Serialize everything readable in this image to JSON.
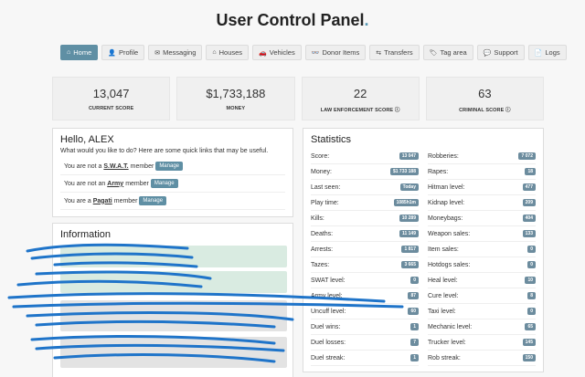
{
  "page": {
    "title": "User Control Panel",
    "title_dot": "."
  },
  "nav": [
    {
      "icon": "home-icon",
      "glyph": "⌂",
      "label": "Home",
      "active": true
    },
    {
      "icon": "user-icon",
      "glyph": "👤",
      "label": "Profile"
    },
    {
      "icon": "envelope-icon",
      "glyph": "✉",
      "label": "Messaging"
    },
    {
      "icon": "house-icon",
      "glyph": "⌂",
      "label": "Houses"
    },
    {
      "icon": "car-icon",
      "glyph": "🚗",
      "label": "Vehicles"
    },
    {
      "icon": "glasses-icon",
      "glyph": "👓",
      "label": "Donor Items"
    },
    {
      "icon": "exchange-icon",
      "glyph": "⇆",
      "label": "Transfers"
    },
    {
      "icon": "tag-icon",
      "glyph": "🏷",
      "label": "Tag area"
    },
    {
      "icon": "chat-icon",
      "glyph": "💬",
      "label": "Support"
    },
    {
      "icon": "file-icon",
      "glyph": "📄",
      "label": "Logs"
    }
  ],
  "stats": [
    {
      "value": "13,047",
      "label": "CURRENT SCORE"
    },
    {
      "value": "$1,733,188",
      "label": "MONEY"
    },
    {
      "value": "22",
      "label": "LAW ENFORCEMENT SCORE ⓘ"
    },
    {
      "value": "63",
      "label": "CRIMINAL SCORE ⓘ"
    }
  ],
  "hello": {
    "title": "Hello, ALEX",
    "subtitle": "What would you like to do? Here are some quick links that may be useful.",
    "links": [
      {
        "pre": "You are not a",
        "org": "S.W.A.T.",
        "post": "member",
        "button": "Manage"
      },
      {
        "pre": "You are not an",
        "org": "Army",
        "post": "member",
        "button": "Manage"
      },
      {
        "pre": "You are a",
        "org": "Pagati",
        "post": "member",
        "button": "Manage"
      }
    ]
  },
  "info": {
    "title": "Information"
  },
  "statistics": {
    "title": "Statistics",
    "left": [
      {
        "label": "Score:",
        "value": "13 047"
      },
      {
        "label": "Money:",
        "value": "$1 733 188"
      },
      {
        "label": "Last seen:",
        "value": "Today"
      },
      {
        "label": "Play time:",
        "value": "1085h1m"
      },
      {
        "label": "Kills:",
        "value": "10 289"
      },
      {
        "label": "Deaths:",
        "value": "11 149"
      },
      {
        "label": "Arrests:",
        "value": "1 817"
      },
      {
        "label": "Tazes:",
        "value": "3 665"
      },
      {
        "label": "SWAT level:",
        "value": "0"
      },
      {
        "label": "Army level:",
        "value": "87"
      },
      {
        "label": "Uncuff level:",
        "value": "60"
      },
      {
        "label": "Duel wins:",
        "value": "1"
      },
      {
        "label": "Duel losses:",
        "value": "7"
      },
      {
        "label": "Duel streak:",
        "value": "1"
      }
    ],
    "right": [
      {
        "label": "Robberies:",
        "value": "7 072"
      },
      {
        "label": "Rapes:",
        "value": "18"
      },
      {
        "label": "Hitman level:",
        "value": "477"
      },
      {
        "label": "Kidnap level:",
        "value": "209"
      },
      {
        "label": "Moneybags:",
        "value": "404"
      },
      {
        "label": "Weapon sales:",
        "value": "133"
      },
      {
        "label": "Item sales:",
        "value": "0"
      },
      {
        "label": "Hotdogs sales:",
        "value": "0"
      },
      {
        "label": "Heal level:",
        "value": "10"
      },
      {
        "label": "Cure level:",
        "value": "8"
      },
      {
        "label": "Taxi level:",
        "value": "0"
      },
      {
        "label": "Mechanic level:",
        "value": "65"
      },
      {
        "label": "Trucker level:",
        "value": "145"
      },
      {
        "label": "Rob streak:",
        "value": "150"
      }
    ]
  },
  "colors": {
    "accent": "#5f8fa4",
    "badge": "#6c8c9e",
    "scribble": "#1f74c9",
    "success_box": "#d9ebe1",
    "neutral_box": "#e3e3e3"
  }
}
